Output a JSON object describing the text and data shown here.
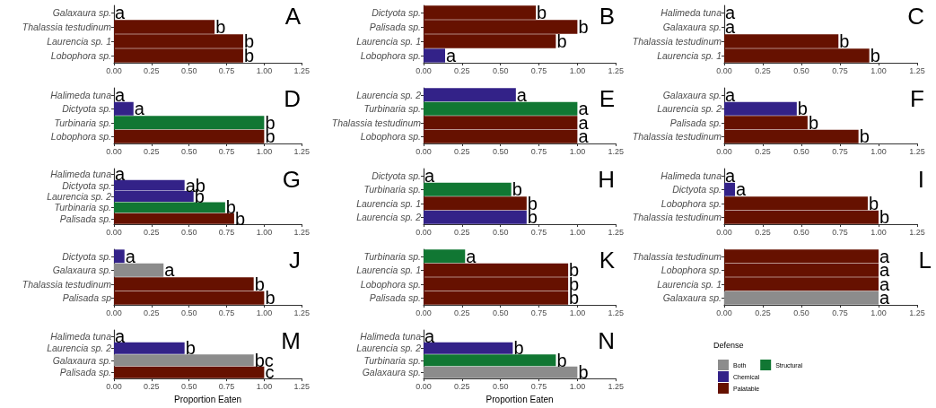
{
  "chart_data": [
    {
      "type": "bar",
      "orientation": "horizontal",
      "title": "A",
      "categories": [
        "Galaxaura sp.",
        "Thalassia testudinum",
        "Laurencia sp. 1",
        "Lobophora sp."
      ],
      "series": [
        {
          "color": "#661100",
          "values": [
            null,
            0.67,
            0.86,
            0.86
          ],
          "value_labels": [
            null,
            "b",
            "b",
            "b"
          ]
        },
        {
          "color": "#8c8c8c",
          "values": [
            0,
            null,
            null,
            null
          ],
          "value_labels": [
            "a",
            null,
            null,
            null
          ]
        }
      ],
      "xlim": [
        0,
        1.25
      ],
      "xticks": [
        {
          "value": 0,
          "label": "0.00"
        },
        {
          "value": 0.25,
          "label": "0.25"
        },
        {
          "value": 0.5,
          "label": "0.50"
        },
        {
          "value": 0.75,
          "label": "0.75"
        },
        {
          "value": 1,
          "label": "1.00"
        },
        {
          "value": 1.25,
          "label": "1.25"
        }
      ]
    },
    {
      "type": "bar",
      "orientation": "horizontal",
      "title": "B",
      "categories": [
        "Dictyota sp.",
        "Palisada sp.",
        "Laurencia sp. 1",
        "Lobophora sp."
      ],
      "series": [
        {
          "color": "#661100",
          "values": [
            0.73,
            1.0,
            0.86,
            null
          ],
          "value_labels": [
            "b",
            "b",
            "b",
            null
          ]
        },
        {
          "color": "#332288",
          "values": [
            null,
            null,
            null,
            0.14
          ],
          "value_labels": [
            null,
            null,
            null,
            "a"
          ]
        }
      ],
      "xlim": [
        0,
        1.25
      ],
      "xticks": [
        {
          "value": 0,
          "label": "0.00"
        },
        {
          "value": 0.25,
          "label": "0.25"
        },
        {
          "value": 0.5,
          "label": "0.50"
        },
        {
          "value": 0.75,
          "label": "0.75"
        },
        {
          "value": 1,
          "label": "1.00"
        },
        {
          "value": 1.25,
          "label": "1.25"
        }
      ]
    },
    {
      "type": "bar",
      "orientation": "horizontal",
      "title": "C",
      "categories": [
        "Halimeda tuna",
        "Galaxaura sp.",
        "Thalassia testudinum",
        "Laurencia sp. 1"
      ],
      "series": [
        {
          "color": "#661100",
          "values": [
            null,
            null,
            0.74,
            0.94
          ],
          "value_labels": [
            null,
            null,
            "b",
            "b"
          ]
        },
        {
          "color": "#8c8c8c",
          "values": [
            0,
            0,
            null,
            null
          ],
          "value_labels": [
            "a",
            "a",
            null,
            null
          ]
        }
      ],
      "xlim": [
        0,
        1.25
      ],
      "xticks": [
        {
          "value": 0,
          "label": "0.00"
        },
        {
          "value": 0.25,
          "label": "0.25"
        },
        {
          "value": 0.5,
          "label": "0.50"
        },
        {
          "value": 0.75,
          "label": "0.75"
        },
        {
          "value": 1,
          "label": "1.00"
        },
        {
          "value": 1.25,
          "label": "1.25"
        }
      ]
    },
    {
      "type": "bar",
      "orientation": "horizontal",
      "title": "D",
      "categories": [
        "Halimeda tuna",
        "Dictyota sp.",
        "Turbinaria sp.",
        "Lobophora sp."
      ],
      "series": [
        {
          "color": "#8c8c8c",
          "values": [
            0,
            null,
            null,
            null
          ],
          "value_labels": [
            "a",
            null,
            null,
            null
          ]
        },
        {
          "color": "#332288",
          "values": [
            null,
            0.13,
            null,
            null
          ],
          "value_labels": [
            null,
            "a",
            null,
            null
          ]
        },
        {
          "color": "#117733",
          "values": [
            null,
            null,
            1.0,
            null
          ],
          "value_labels": [
            null,
            null,
            "b",
            null
          ]
        },
        {
          "color": "#661100",
          "values": [
            null,
            null,
            null,
            1.0
          ],
          "value_labels": [
            null,
            null,
            null,
            "b"
          ]
        }
      ],
      "xlim": [
        0,
        1.25
      ],
      "xticks": [
        {
          "value": 0,
          "label": "0.00"
        },
        {
          "value": 0.25,
          "label": "0.25"
        },
        {
          "value": 0.5,
          "label": "0.50"
        },
        {
          "value": 0.75,
          "label": "0.75"
        },
        {
          "value": 1,
          "label": "1.00"
        },
        {
          "value": 1.25,
          "label": "1.25"
        }
      ]
    },
    {
      "type": "bar",
      "orientation": "horizontal",
      "title": "E",
      "categories": [
        "Laurencia sp. 2",
        "Turbinaria sp.",
        "Thalassia testudinum",
        "Lobophora sp."
      ],
      "series": [
        {
          "color": "#332288",
          "values": [
            0.6,
            null,
            null,
            null
          ],
          "value_labels": [
            "a",
            null,
            null,
            null
          ]
        },
        {
          "color": "#117733",
          "values": [
            null,
            1.0,
            null,
            null
          ],
          "value_labels": [
            null,
            "a",
            null,
            null
          ]
        },
        {
          "color": "#661100",
          "values": [
            null,
            null,
            1.0,
            1.0
          ],
          "value_labels": [
            null,
            null,
            "a",
            "a"
          ]
        }
      ],
      "xlim": [
        0,
        1.25
      ],
      "xticks": [
        {
          "value": 0,
          "label": "0.00"
        },
        {
          "value": 0.25,
          "label": "0.25"
        },
        {
          "value": 0.5,
          "label": "0.50"
        },
        {
          "value": 0.75,
          "label": "0.75"
        },
        {
          "value": 1,
          "label": "1.00"
        },
        {
          "value": 1.25,
          "label": "1.25"
        }
      ]
    },
    {
      "type": "bar",
      "orientation": "horizontal",
      "title": "F",
      "categories": [
        "Galaxaura sp.",
        "Laurencia sp. 2",
        "Palisada sp.",
        "Thalassia testudinum"
      ],
      "series": [
        {
          "color": "#8c8c8c",
          "values": [
            0,
            null,
            null,
            null
          ],
          "value_labels": [
            "a",
            null,
            null,
            null
          ]
        },
        {
          "color": "#332288",
          "values": [
            null,
            0.47,
            null,
            null
          ],
          "value_labels": [
            null,
            "b",
            null,
            null
          ]
        },
        {
          "color": "#661100",
          "values": [
            null,
            null,
            0.54,
            0.87
          ],
          "value_labels": [
            null,
            null,
            "b",
            "b"
          ]
        }
      ],
      "xlim": [
        0,
        1.25
      ],
      "xticks": [
        {
          "value": 0,
          "label": "0.00"
        },
        {
          "value": 0.25,
          "label": "0.25"
        },
        {
          "value": 0.5,
          "label": "0.50"
        },
        {
          "value": 0.75,
          "label": "0.75"
        },
        {
          "value": 1,
          "label": "1.00"
        },
        {
          "value": 1.25,
          "label": "1.25"
        }
      ]
    },
    {
      "type": "bar",
      "orientation": "horizontal",
      "title": "G",
      "categories": [
        "Halimeda tuna",
        "Dictyota sp.",
        "Laurencia sp. 2",
        "Turbinaria sp.",
        "Palisada sp."
      ],
      "series": [
        {
          "color": "#8c8c8c",
          "values": [
            0,
            null,
            null,
            null,
            null
          ],
          "value_labels": [
            "a",
            null,
            null,
            null,
            null
          ]
        },
        {
          "color": "#332288",
          "values": [
            null,
            0.47,
            0.53,
            null,
            null
          ],
          "value_labels": [
            null,
            "ab",
            "b",
            null,
            null
          ]
        },
        {
          "color": "#117733",
          "values": [
            null,
            null,
            null,
            0.74,
            null
          ],
          "value_labels": [
            null,
            null,
            null,
            "b",
            null
          ]
        },
        {
          "color": "#661100",
          "values": [
            null,
            null,
            null,
            null,
            0.8
          ],
          "value_labels": [
            null,
            null,
            null,
            null,
            "b"
          ]
        }
      ],
      "xlim": [
        0,
        1.25
      ],
      "xticks": [
        {
          "value": 0,
          "label": "0.00"
        },
        {
          "value": 0.25,
          "label": "0.25"
        },
        {
          "value": 0.5,
          "label": "0.50"
        },
        {
          "value": 0.75,
          "label": "0.75"
        },
        {
          "value": 1,
          "label": "1.00"
        },
        {
          "value": 1.25,
          "label": "1.25"
        }
      ]
    },
    {
      "type": "bar",
      "orientation": "horizontal",
      "title": "H",
      "categories": [
        "Dictyota sp.",
        "Turbinaria sp.",
        "Laurencia sp. 1",
        "Laurencia sp. 2"
      ],
      "series": [
        {
          "color": "#332288",
          "values": [
            0,
            null,
            null,
            0.67
          ],
          "value_labels": [
            "a",
            null,
            null,
            "b"
          ]
        },
        {
          "color": "#117733",
          "values": [
            null,
            0.57,
            null,
            null
          ],
          "value_labels": [
            null,
            "b",
            null,
            null
          ]
        },
        {
          "color": "#661100",
          "values": [
            null,
            null,
            0.67,
            null
          ],
          "value_labels": [
            null,
            null,
            "b",
            null
          ]
        }
      ],
      "xlim": [
        0,
        1.25
      ],
      "xticks": [
        {
          "value": 0,
          "label": "0.00"
        },
        {
          "value": 0.25,
          "label": "0.25"
        },
        {
          "value": 0.5,
          "label": "0.50"
        },
        {
          "value": 0.75,
          "label": "0.75"
        },
        {
          "value": 1,
          "label": "1.00"
        },
        {
          "value": 1.25,
          "label": "1.25"
        }
      ]
    },
    {
      "type": "bar",
      "orientation": "horizontal",
      "title": "I",
      "categories": [
        "Halimeda tuna",
        "Dictyota sp.",
        "Lobophora sp.",
        "Thalassia testudinum"
      ],
      "series": [
        {
          "color": "#8c8c8c",
          "values": [
            0,
            null,
            null,
            null
          ],
          "value_labels": [
            "a",
            null,
            null,
            null
          ]
        },
        {
          "color": "#332288",
          "values": [
            null,
            0.07,
            null,
            null
          ],
          "value_labels": [
            null,
            "a",
            null,
            null
          ]
        },
        {
          "color": "#661100",
          "values": [
            null,
            null,
            0.93,
            1.0
          ],
          "value_labels": [
            null,
            null,
            "b",
            "b"
          ]
        }
      ],
      "xlim": [
        0,
        1.25
      ],
      "xticks": [
        {
          "value": 0,
          "label": "0.00"
        },
        {
          "value": 0.25,
          "label": "0.25"
        },
        {
          "value": 0.5,
          "label": "0.50"
        },
        {
          "value": 0.75,
          "label": "0.75"
        },
        {
          "value": 1,
          "label": "1.00"
        },
        {
          "value": 1.25,
          "label": "1.25"
        }
      ]
    },
    {
      "type": "bar",
      "orientation": "horizontal",
      "title": "J",
      "categories": [
        "Dictyota sp.",
        "Galaxaura sp.",
        "Thalassia testudinum",
        "Palisada sp"
      ],
      "series": [
        {
          "color": "#332288",
          "values": [
            0.07,
            null,
            null,
            null
          ],
          "value_labels": [
            "a",
            null,
            null,
            null
          ]
        },
        {
          "color": "#8c8c8c",
          "values": [
            null,
            0.33,
            null,
            null
          ],
          "value_labels": [
            null,
            "a",
            null,
            null
          ]
        },
        {
          "color": "#661100",
          "values": [
            null,
            null,
            0.93,
            1.0
          ],
          "value_labels": [
            null,
            null,
            "b",
            "b"
          ]
        }
      ],
      "xlim": [
        0,
        1.25
      ],
      "xticks": [
        {
          "value": 0,
          "label": "0.00"
        },
        {
          "value": 0.25,
          "label": "0.25"
        },
        {
          "value": 0.5,
          "label": "0.50"
        },
        {
          "value": 0.75,
          "label": "0.75"
        },
        {
          "value": 1,
          "label": "1.00"
        },
        {
          "value": 1.25,
          "label": "1.25"
        }
      ]
    },
    {
      "type": "bar",
      "orientation": "horizontal",
      "title": "K",
      "categories": [
        "Turbinaria sp.",
        "Laurencia sp. 1",
        "Lobophora sp.",
        "Palisada sp."
      ],
      "series": [
        {
          "color": "#117733",
          "values": [
            0.27,
            null,
            null,
            null
          ],
          "value_labels": [
            "a",
            null,
            null,
            null
          ]
        },
        {
          "color": "#661100",
          "values": [
            null,
            0.94,
            0.94,
            0.94
          ],
          "value_labels": [
            null,
            "b",
            "b",
            "b"
          ]
        }
      ],
      "xlim": [
        0,
        1.25
      ],
      "xticks": [
        {
          "value": 0,
          "label": "0.00"
        },
        {
          "value": 0.25,
          "label": "0.25"
        },
        {
          "value": 0.5,
          "label": "0.50"
        },
        {
          "value": 0.75,
          "label": "0.75"
        },
        {
          "value": 1,
          "label": "1.00"
        },
        {
          "value": 1.25,
          "label": "1.25"
        }
      ]
    },
    {
      "type": "bar",
      "orientation": "horizontal",
      "title": "L",
      "categories": [
        "Thalassia testudinum",
        "Lobophora sp.",
        "Laurencia sp. 1",
        "Galaxaura sp."
      ],
      "series": [
        {
          "name": "Both",
          "color": "#8c8c8c",
          "values": [
            null,
            null,
            null,
            1.0
          ],
          "value_labels": [
            null,
            null,
            null,
            "a"
          ]
        },
        {
          "name": "Chemical",
          "color": "#332288",
          "values": [
            null,
            null,
            null,
            null
          ]
        },
        {
          "name": "Palatable",
          "color": "#661100",
          "values": [
            1.0,
            1.0,
            1.0,
            null
          ],
          "value_labels": [
            "a",
            "a",
            "a",
            null
          ]
        },
        {
          "name": "Structural",
          "color": "#117733",
          "values": [
            null,
            null,
            null,
            null
          ]
        }
      ],
      "legend": "bottom",
      "legend_title": "Defense",
      "xlim": [
        0,
        1.25
      ],
      "xticks": [
        {
          "value": 0,
          "label": "0.00"
        },
        {
          "value": 0.25,
          "label": "0.25"
        },
        {
          "value": 0.5,
          "label": "0.50"
        },
        {
          "value": 0.75,
          "label": "0.75"
        },
        {
          "value": 1,
          "label": "1.00"
        },
        {
          "value": 1.25,
          "label": "1.25"
        }
      ]
    },
    {
      "type": "bar",
      "orientation": "horizontal",
      "title": "M",
      "xlabel": "Proportion Eaten",
      "categories": [
        "Halimeda tuna",
        "Laurencia sp. 2",
        "Galaxaura sp.",
        "Palisada sp."
      ],
      "series": [
        {
          "color": "#8c8c8c",
          "values": [
            0,
            null,
            0.93,
            null
          ],
          "value_labels": [
            "a",
            null,
            "bc",
            null
          ]
        },
        {
          "color": "#332288",
          "values": [
            null,
            0.47,
            null,
            null
          ],
          "value_labels": [
            null,
            "b",
            null,
            null
          ]
        },
        {
          "color": "#661100",
          "values": [
            null,
            null,
            null,
            1.0
          ],
          "value_labels": [
            null,
            null,
            null,
            "c"
          ]
        }
      ],
      "xlim": [
        0,
        1.25
      ],
      "xticks": [
        {
          "value": 0,
          "label": "0.00"
        },
        {
          "value": 0.25,
          "label": "0.25"
        },
        {
          "value": 0.5,
          "label": "0.50"
        },
        {
          "value": 0.75,
          "label": "0.75"
        },
        {
          "value": 1,
          "label": "1.00"
        },
        {
          "value": 1.25,
          "label": "1.25"
        }
      ]
    },
    {
      "type": "bar",
      "orientation": "horizontal",
      "title": "N",
      "xlabel": "Proportion Eaten",
      "categories": [
        "Halimeda tuna",
        "Laurencia sp. 2",
        "Turbinaria sp.",
        "Galaxaura sp."
      ],
      "series": [
        {
          "color": "#8c8c8c",
          "values": [
            0,
            null,
            null,
            1.0
          ],
          "value_labels": [
            "a",
            null,
            null,
            "b"
          ]
        },
        {
          "color": "#332288",
          "values": [
            null,
            0.58,
            null,
            null
          ],
          "value_labels": [
            null,
            "b",
            null,
            null
          ]
        },
        {
          "color": "#117733",
          "values": [
            null,
            null,
            0.86,
            null
          ],
          "value_labels": [
            null,
            null,
            "b",
            null
          ]
        }
      ],
      "xlim": [
        0,
        1.25
      ],
      "xticks": [
        {
          "value": 0,
          "label": "0.00"
        },
        {
          "value": 0.25,
          "label": "0.25"
        },
        {
          "value": 0.5,
          "label": "0.50"
        },
        {
          "value": 0.75,
          "label": "0.75"
        },
        {
          "value": 1,
          "label": "1.00"
        },
        {
          "value": 1.25,
          "label": "1.25"
        }
      ]
    }
  ]
}
